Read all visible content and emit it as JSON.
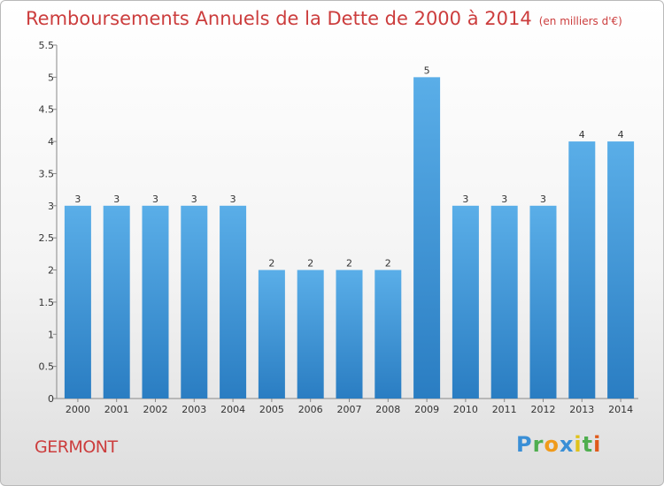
{
  "title": "Remboursements Annuels de la Dette de 2000 à 2014",
  "unit": "(en milliers d'€)",
  "commune": "GERMONT",
  "logo": {
    "text": "Proxiti"
  },
  "colors": {
    "bar_top": "#5aaee8",
    "bar_bottom": "#2a7dc2",
    "title": "#cc3d3d"
  },
  "chart_data": {
    "type": "bar",
    "categories": [
      "2000",
      "2001",
      "2002",
      "2003",
      "2004",
      "2005",
      "2006",
      "2007",
      "2008",
      "2009",
      "2010",
      "2011",
      "2012",
      "2013",
      "2014"
    ],
    "values": [
      3,
      3,
      3,
      3,
      3,
      2,
      2,
      2,
      2,
      5,
      3,
      3,
      3,
      4,
      4
    ],
    "yticks": [
      "0",
      "0.5",
      "1",
      "1.5",
      "2",
      "2.5",
      "3",
      "3.5",
      "4",
      "4.5",
      "5",
      "5.5"
    ],
    "ylim": [
      0,
      5.5
    ],
    "grid": false
  }
}
